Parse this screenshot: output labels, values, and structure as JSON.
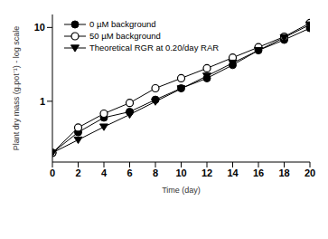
{
  "chart_data": {
    "type": "line",
    "x_label": "Time (day)",
    "y_label": "Plant dry mass (g.pot⁻¹) - log scale",
    "x": [
      0,
      2,
      4,
      6,
      8,
      10,
      12,
      14,
      16,
      18,
      20
    ],
    "series": [
      {
        "name": "0  µM background",
        "color": "#000000",
        "marker": "filled_circle",
        "line_style": "solid",
        "values": [
          0.2,
          0.38,
          0.6,
          0.72,
          1.05,
          1.5,
          2.05,
          3.1,
          4.9,
          6.8,
          9.8
        ]
      },
      {
        "name": "50  µM background",
        "color": "#000000",
        "marker": "open_circle",
        "line_style": "solid",
        "values": [
          0.2,
          0.44,
          0.68,
          0.95,
          1.5,
          2.05,
          2.8,
          3.9,
          5.4,
          7.5,
          11.5
        ]
      },
      {
        "name": "Theoretical RGR at 0.20/day RAR",
        "color": "#000000",
        "marker": "triangle_down",
        "line_style": "solid",
        "values": [
          0.2,
          0.3,
          0.45,
          0.66,
          0.99,
          1.48,
          2.2,
          3.3,
          4.9,
          7.3,
          10.9
        ]
      }
    ],
    "xlim": [
      0,
      20
    ],
    "xticks": [
      0,
      2,
      4,
      6,
      8,
      10,
      12,
      14,
      16,
      18,
      20
    ],
    "ylim": [
      0.15,
      15
    ],
    "yticks": [
      1,
      10
    ],
    "log": "y",
    "legend": "upper left",
    "grid": false
  }
}
